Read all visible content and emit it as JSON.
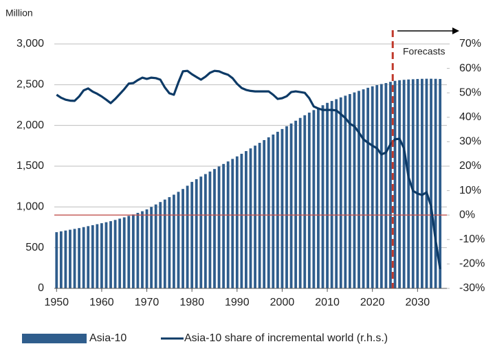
{
  "chart_data": {
    "type": "bar_line",
    "y_label": "Million",
    "annotation": "Forecasts",
    "forecast_start": 2024.5,
    "x": [
      1950,
      1951,
      1952,
      1953,
      1954,
      1955,
      1956,
      1957,
      1958,
      1959,
      1960,
      1961,
      1962,
      1963,
      1964,
      1965,
      1966,
      1967,
      1968,
      1969,
      1970,
      1971,
      1972,
      1973,
      1974,
      1975,
      1976,
      1977,
      1978,
      1979,
      1980,
      1981,
      1982,
      1983,
      1984,
      1985,
      1986,
      1987,
      1988,
      1989,
      1990,
      1991,
      1992,
      1993,
      1994,
      1995,
      1996,
      1997,
      1998,
      1999,
      2000,
      2001,
      2002,
      2003,
      2004,
      2005,
      2006,
      2007,
      2008,
      2009,
      2010,
      2011,
      2012,
      2013,
      2014,
      2015,
      2016,
      2017,
      2018,
      2019,
      2020,
      2021,
      2022,
      2023,
      2024,
      2025,
      2026,
      2027,
      2028,
      2029,
      2030,
      2031,
      2032,
      2033,
      2034,
      2035
    ],
    "series": [
      {
        "name": "Asia-10",
        "color": "#2f5d8c",
        "axis": "y",
        "values": [
          690,
          700,
          710,
          720,
          730,
          740,
          752,
          764,
          776,
          788,
          800,
          812,
          825,
          840,
          856,
          872,
          890,
          908,
          927,
          947,
          970,
          1000,
          1030,
          1060,
          1090,
          1120,
          1150,
          1185,
          1220,
          1260,
          1307,
          1340,
          1372,
          1403,
          1434,
          1465,
          1496,
          1527,
          1558,
          1589,
          1620,
          1652,
          1685,
          1718,
          1752,
          1786,
          1820,
          1854,
          1888,
          1922,
          1956,
          1990,
          2024,
          2058,
          2092,
          2125,
          2157,
          2188,
          2218,
          2248,
          2277,
          2300,
          2322,
          2344,
          2365,
          2385,
          2405,
          2424,
          2443,
          2462,
          2480,
          2495,
          2508,
          2520,
          2535,
          2547,
          2555,
          2560,
          2564,
          2567,
          2570,
          2572,
          2573,
          2573,
          2572,
          2570
        ]
      },
      {
        "name": "Asia-10 share of incremental world (r.h.s.)",
        "color": "#0d3a66",
        "axis": "y2",
        "values": [
          49.2,
          48,
          47.2,
          46.8,
          46.7,
          48.5,
          51,
          51.8,
          50.5,
          49.6,
          48.5,
          47.2,
          45.8,
          47.5,
          49.5,
          51.5,
          53.8,
          54,
          55.2,
          56.2,
          55.7,
          56.2,
          56,
          55.4,
          52.2,
          49.8,
          49.2,
          54.3,
          58.8,
          59,
          57.6,
          56.5,
          55.4,
          56.6,
          58.2,
          59,
          58.8,
          58,
          57.4,
          56,
          53.7,
          52,
          51.2,
          50.8,
          50.6,
          50.6,
          50.6,
          50.6,
          49.2,
          47.5,
          47.8,
          48.6,
          50.3,
          50.6,
          50.3,
          50,
          47.8,
          44.4,
          43.6,
          43,
          43,
          43,
          42.8,
          41.3,
          39.7,
          37.4,
          36.3,
          33.8,
          31,
          29.6,
          28.4,
          27.3,
          24.8,
          25.6,
          29,
          31,
          31.2,
          27.3,
          15.5,
          9.9,
          8.8,
          8.2,
          9.3,
          3.7,
          -10.3,
          -22.1
        ]
      }
    ],
    "xlim": [
      1949.5,
      2036.5
    ],
    "xticks": [
      1950,
      1960,
      1970,
      1980,
      1990,
      2000,
      2010,
      2020,
      2030
    ],
    "ylim": [
      0,
      3000
    ],
    "yticks": [
      0,
      500,
      {
        "value": 1000,
        "label": "1,000"
      },
      {
        "value": 1500,
        "label": "1,500"
      },
      {
        "value": 2000,
        "label": "2,000"
      },
      {
        "value": 2500,
        "label": "2,500"
      },
      {
        "value": 3000,
        "label": "3,000"
      }
    ],
    "y2lim": [
      -30,
      70
    ],
    "y2ticks": [
      {
        "value": 70,
        "label": "70%"
      },
      {
        "value": 60,
        "label": "60%"
      },
      {
        "value": 50,
        "label": "50%"
      },
      {
        "value": 40,
        "label": "40%"
      },
      {
        "value": 30,
        "label": "30%"
      },
      {
        "value": 20,
        "label": "20%"
      },
      {
        "value": 10,
        "label": "10%"
      },
      {
        "value": 0,
        "label": "0%"
      },
      {
        "value": -10,
        "label": "-10%"
      },
      {
        "value": -20,
        "label": "-20%"
      },
      {
        "value": -30,
        "label": "-30%"
      }
    ],
    "zero_line": {
      "axis": "y2",
      "value": 0,
      "color": "#c0504d"
    },
    "grid": true
  }
}
